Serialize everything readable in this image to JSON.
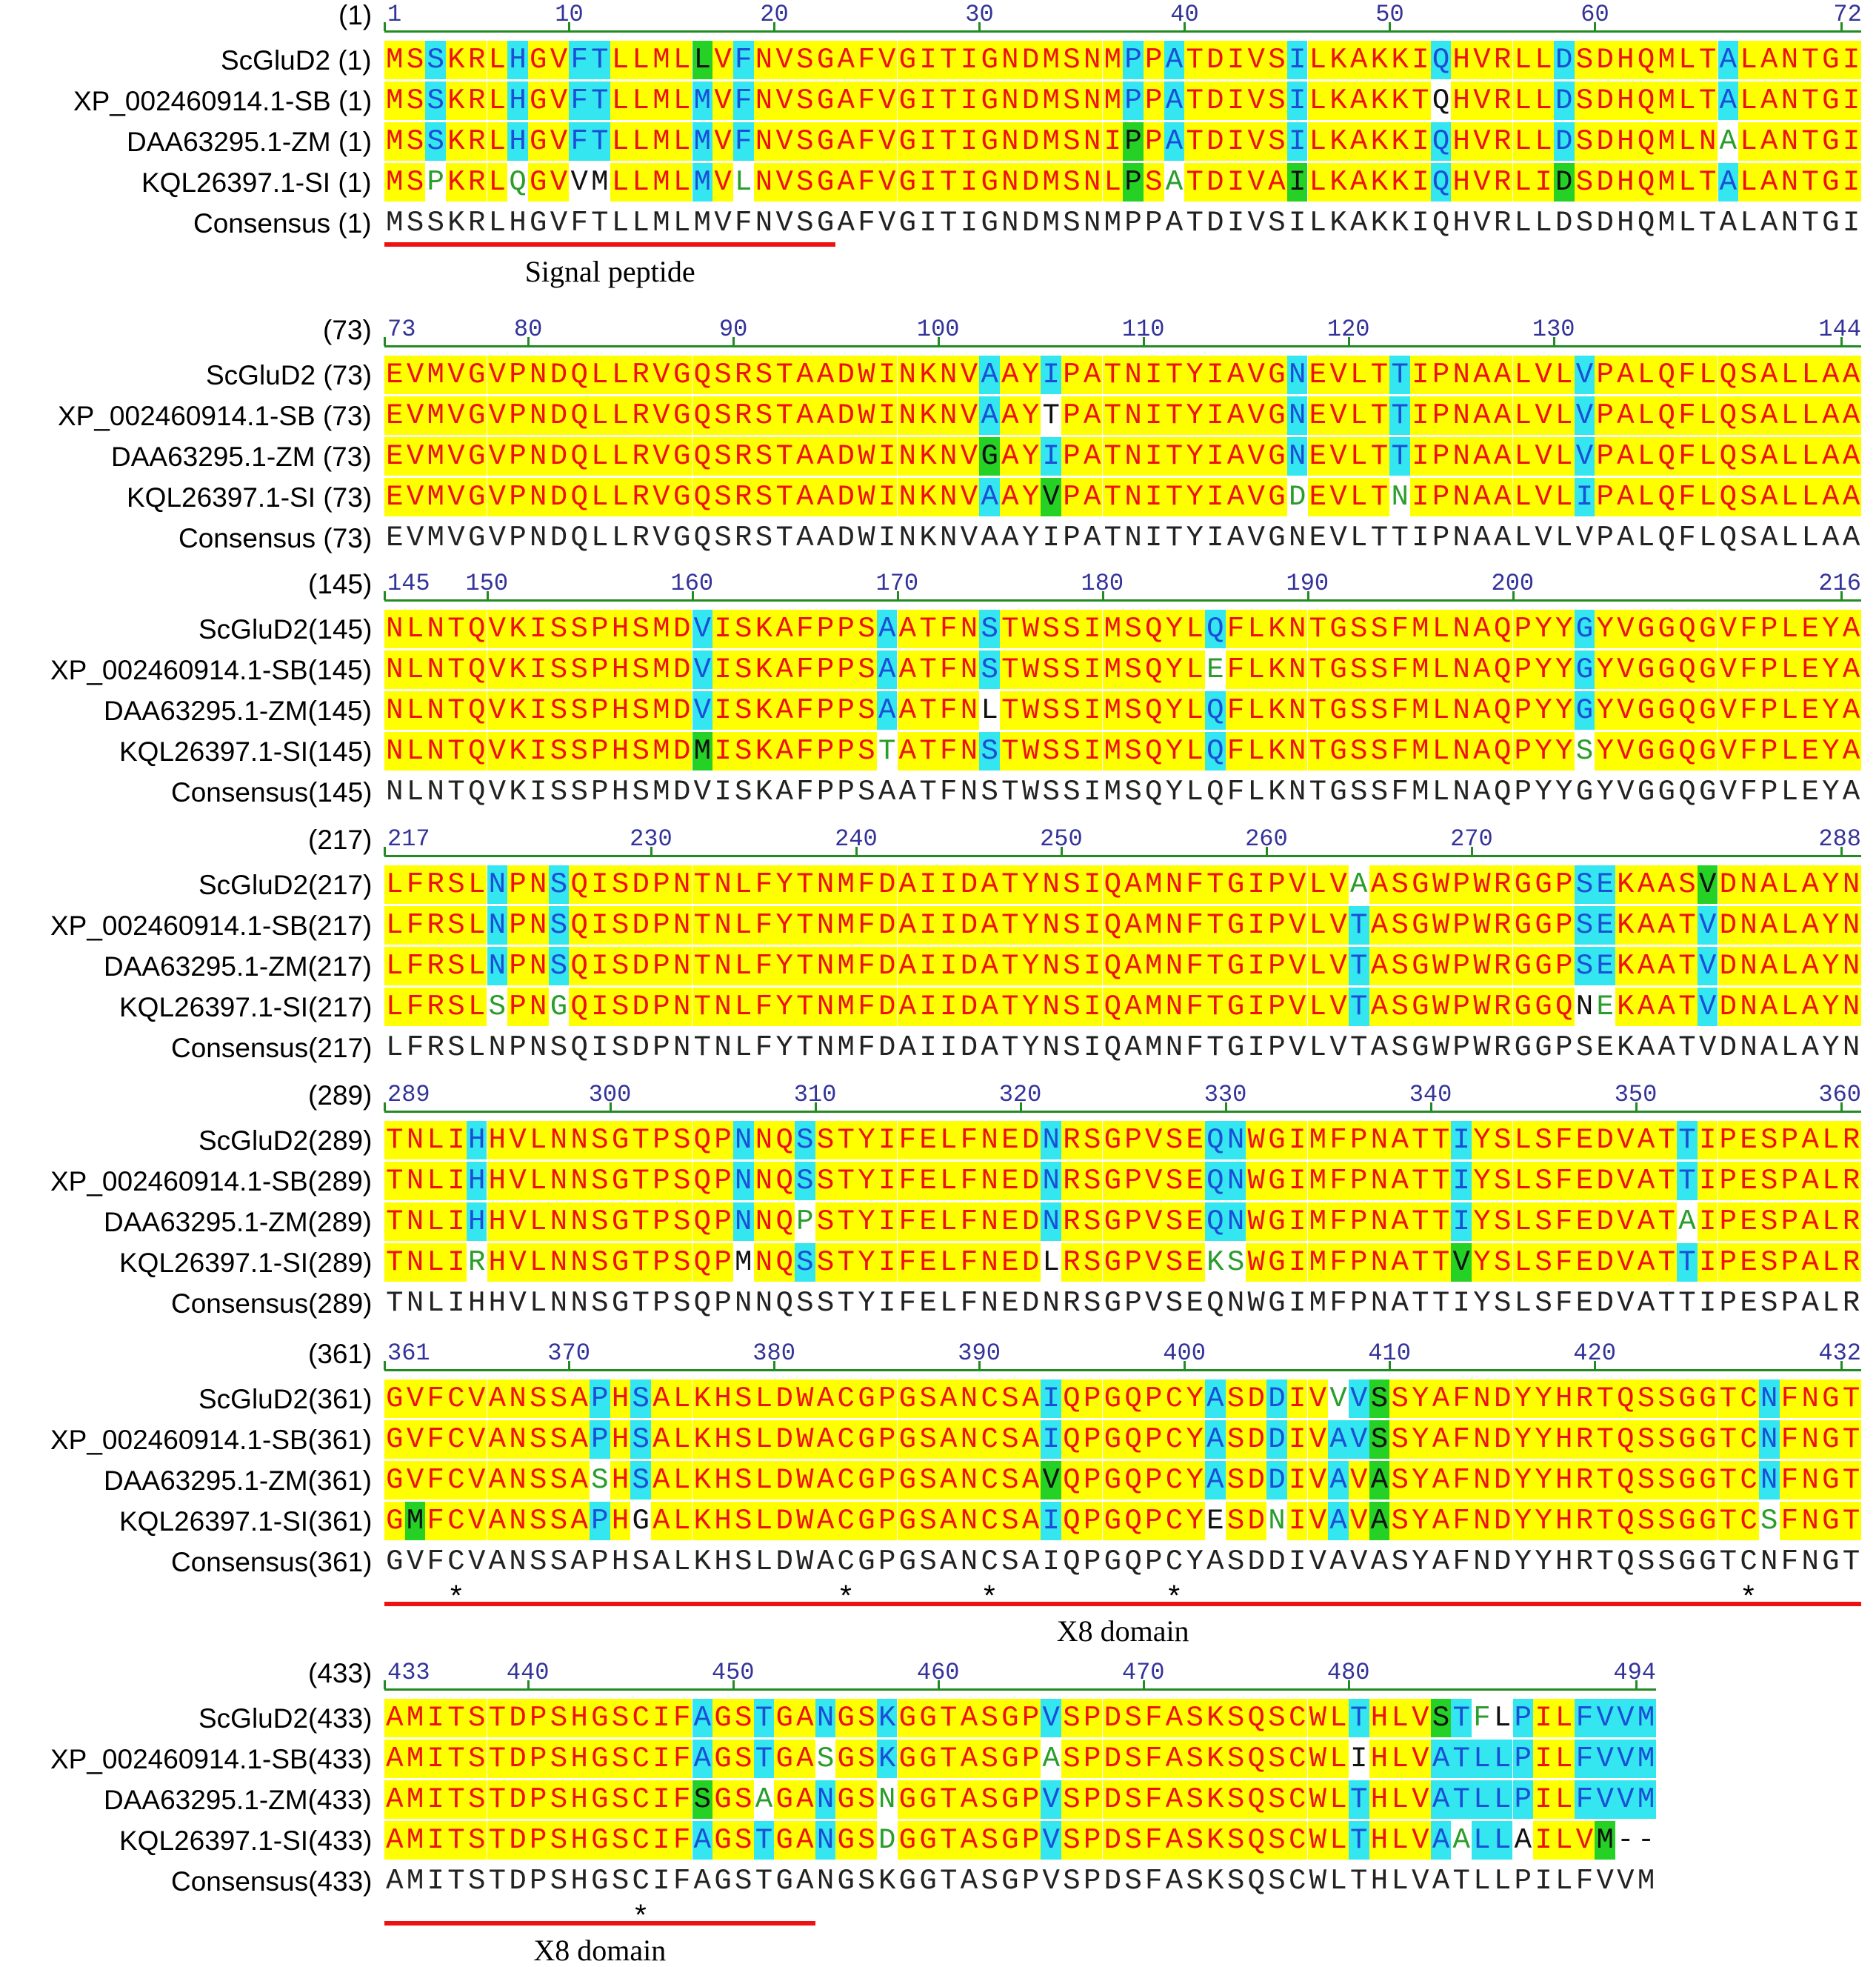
{
  "figure": {
    "legend": {
      "identical_highlight_color": "#ffff00",
      "similar_highlight_color": "#33e6f0",
      "conserved_block_color": "#26d126",
      "identical_text_color": "#ee1111",
      "similar_text_color": "#1a4fd6",
      "block_text_color": "#111111",
      "weak_text_color": "#2a9d2a",
      "tick_color": "#333399",
      "ruler_line_color": "#228b22",
      "feature_bar_color": "#ee1111"
    },
    "blocks": [
      {
        "start_label": "(1)",
        "ticks": [
          {
            "pos": 1,
            "label": "1"
          },
          {
            "pos": 10,
            "label": "10"
          },
          {
            "pos": 20,
            "label": "20"
          },
          {
            "pos": 30,
            "label": "30"
          },
          {
            "pos": 40,
            "label": "40"
          },
          {
            "pos": 50,
            "label": "50"
          },
          {
            "pos": 60,
            "label": "60"
          },
          {
            "pos": 72,
            "label": "72"
          }
        ],
        "rows": [
          {
            "label": "ScGluD2 (1)",
            "seq": "MSSKRLHGVFTLLMLLVFNVSGAFVGITIGNDMSNMPPATDIVSILKAKKIQHVRLLDSDHQMLTALANTGI",
            "cls": "YYCYYYCYYCCYYYYGYCYYYYYYYYYYYYYYYYYYCYCYYYYYCYYYYYYCYYYYYCYYYYYYYCYYYYYY"
          },
          {
            "label": "XP_002460914.1-SB (1)",
            "seq": "MSSKRLHGVFTLLMLMVFNVSGAFVGITIGNDMSNMPPATDIVSILKAKKTQHVRLLDSDHQMLTALANTGI",
            "cls": "YYCYYYCYYCCYYYYCYCYYYYYYYYYYYYYYYYYYCYCYYYYYCYYYYYYWYYYYYCYYYYYYYCYYYYYY"
          },
          {
            "label": "DAA63295.1-ZM (1)",
            "seq": "MSSKRLHGVFTLLMLMVFNVSGAFVGITIGNDMSNIPPATDIVSILKAKKIQHVRLLDSDHQMLNALANTGI",
            "cls": "YYCYYYCYYCCYYYYCYCYYYYYYYYYYYYYYYYYYGYCYYYYYCYYYYYYCYYYYYCYYYYYYYNYYYYYY"
          },
          {
            "label": "KQL26397.1-SI (1)",
            "seq": "MSPKRLQGVVMLLMLMVLNVSGAFVGITIGNDMSNLPSATDIVAILKAKKIQHVRLIDSDHQMLTALANTGI",
            "cls": "YYNYYYNYYWWYYYYCYNYYYYYYYYYYYYYYYYYYGYNYYYYYGYYYYYYCYYYYYGYYYYYYYCYYYYYY"
          },
          {
            "label": "Consensus (1)",
            "seq": "MSSKRLHGVFTLLMLMVFNVSGAFVGITIGNDMSNMPPATDIVSILKAKKIQHVRLLDSDHQMLTALANTGI",
            "cls": "KKKKKKKKKKKKKKKKKKKKKKKKKKKKKKKKKKKKKKKKKKKKKKKKKKKKKKKKKKKKKKKKKKKKKKKK"
          }
        ],
        "features": [
          {
            "label": "Signal peptide",
            "start": 1,
            "end": 22
          }
        ],
        "stars": []
      },
      {
        "start_label": "(73)",
        "ticks": [
          {
            "pos": 73,
            "label": "73"
          },
          {
            "pos": 80,
            "label": "80"
          },
          {
            "pos": 90,
            "label": "90"
          },
          {
            "pos": 100,
            "label": "100"
          },
          {
            "pos": 110,
            "label": "110"
          },
          {
            "pos": 120,
            "label": "120"
          },
          {
            "pos": 130,
            "label": "130"
          },
          {
            "pos": 144,
            "label": "144"
          }
        ],
        "rows": [
          {
            "label": "ScGluD2 (73)",
            "seq": "EVMVGVPNDQLLRVGQSRSTAADWINKNVAAYIPATNITYIAVGNEVLTTIPNAALVLVPALQFLQSALLAA",
            "cls": "YYYYYYYYYYYYYYYYYYYYYYYYYYYYYCYYCYYYYYYYYYYYCYYYYCYYYYYYYYCYYYYYYYYYYYYY"
          },
          {
            "label": "XP_002460914.1-SB (73)",
            "seq": "EVMVGVPNDQLLRVGQSRSTAADWINKNVAAYTPATNITYIAVGNEVLTTIPNAALVLVPALQFLQSALLAA",
            "cls": "YYYYYYYYYYYYYYYYYYYYYYYYYYYYYCYYWYYYYYYYYYYYCYYYYCYYYYYYYYCYYYYYYYYYYYYY"
          },
          {
            "label": "DAA63295.1-ZM (73)",
            "seq": "EVMVGVPNDQLLRVGQSRSTAADWINKNVGAYIPATNITYIAVGNEVLTTIPNAALVLVPALQFLQSALLAA",
            "cls": "YYYYYYYYYYYYYYYYYYYYYYYYYYYYYGYYCYYYYYYYYYYYCYYYYCYYYYYYYYCYYYYYYYYYYYYY"
          },
          {
            "label": "KQL26397.1-SI (73)",
            "seq": "EVMVGVPNDQLLRVGQSRSTAADWINKNVAAYVPATNITYIAVGDEVLTNIPNAALVLIPALQFLQSALLAA",
            "cls": "YYYYYYYYYYYYYYYYYYYYYYYYYYYYYCYYGYYYYYYYYYYYNYYYYNYYYYYYYYCYYYYYYYYYYYYY"
          },
          {
            "label": "Consensus (73)",
            "seq": "EVMVGVPNDQLLRVGQSRSTAADWINKNVAAYIPATNITYIAVGNEVLTTIPNAALVLVPALQFLQSALLAA",
            "cls": "KKKKKKKKKKKKKKKKKKKKKKKKKKKKKKKKKKKKKKKKKKKKKKKKKKKKKKKKKKKKKKKKKKKKKKKK"
          }
        ],
        "features": [],
        "stars": []
      },
      {
        "start_label": "(145)",
        "ticks": [
          {
            "pos": 145,
            "label": "145"
          },
          {
            "pos": 150,
            "label": "150"
          },
          {
            "pos": 160,
            "label": "160"
          },
          {
            "pos": 170,
            "label": "170"
          },
          {
            "pos": 180,
            "label": "180"
          },
          {
            "pos": 190,
            "label": "190"
          },
          {
            "pos": 200,
            "label": "200"
          },
          {
            "pos": 216,
            "label": "216"
          }
        ],
        "rows": [
          {
            "label": "ScGluD2(145)",
            "seq": "NLNTQVKISSPHSMDVISKAFPPSAATFNSTWSSIMSQYLQFLKNTGSSFMLNAQPYYGYVGGQGVFPLEYA",
            "cls": "YYYYYYYYYYYYYYYCYYYYYYYYCYYYYCYYYYYYYYYYCYYYYYYYYYYYYYYYYYCYYYYYYYYYYYYY"
          },
          {
            "label": "XP_002460914.1-SB(145)",
            "seq": "NLNTQVKISSPHSMDVISKAFPPSAATFNSTWSSIMSQYLEFLKNTGSSFMLNAQPYYGYVGGQGVFPLEYA",
            "cls": "YYYYYYYYYYYYYYYCYYYYYYYYCYYYYCYYYYYYYYYYNYYYYYYYYYYYYYYYYYCYYYYYYYYYYYYY"
          },
          {
            "label": "DAA63295.1-ZM(145)",
            "seq": "NLNTQVKISSPHSMDVISKAFPPSAATFNLTWSSIMSQYLQFLKNTGSSFMLNAQPYYGYVGGQGVFPLEYA",
            "cls": "YYYYYYYYYYYYYYYCYYYYYYYYCYYYYWYYYYYYYYYYCYYYYYYYYYYYYYYYYYCYYYYYYYYYYYYY"
          },
          {
            "label": "KQL26397.1-SI(145)",
            "seq": "NLNTQVKISSPHSMDMISKAFPPSTATFNSTWSSIMSQYLQFLKNTGSSFMLNAQPYYSYVGGQGVFPLEYA",
            "cls": "YYYYYYYYYYYYYYYGYYYYYYYYNYYYYCYYYYYYYYYYCYYYYYYYYYYYYYYYYYNYYYYYYYYYYYYY"
          },
          {
            "label": "Consensus(145)",
            "seq": "NLNTQVKISSPHSMDVISKAFPPSAATFNSTWSSIMSQYLQFLKNTGSSFMLNAQPYYGYVGGQGVFPLEYA",
            "cls": "KKKKKKKKKKKKKKKKKKKKKKKKKKKKKKKKKKKKKKKKKKKKKKKKKKKKKKKKKKKKKKKKKKKKKKKK"
          }
        ],
        "features": [],
        "stars": []
      },
      {
        "start_label": "(217)",
        "ticks": [
          {
            "pos": 217,
            "label": "217"
          },
          {
            "pos": 230,
            "label": "230"
          },
          {
            "pos": 240,
            "label": "240"
          },
          {
            "pos": 250,
            "label": "250"
          },
          {
            "pos": 260,
            "label": "260"
          },
          {
            "pos": 270,
            "label": "270"
          },
          {
            "pos": 288,
            "label": "288"
          }
        ],
        "rows": [
          {
            "label": "ScGluD2(217)",
            "seq": "LFRSLNPNSQISDPNTNLFYTNMFDAIIDATYNSIQAMNFTGIPVLVAASGWPWRGGPSEKAASVDNALAYN",
            "cls": "YYYYYCYYCYYYYYYYYYYYYYYYYYYYYYYYYYYYYYYYYYYYYYYNYYYYYYYYYYCCYYYYGYYYYYYY"
          },
          {
            "label": "XP_002460914.1-SB(217)",
            "seq": "LFRSLNPNSQISDPNTNLFYTNMFDAIIDATYNSIQAMNFTGIPVLVTASGWPWRGGPSEKAATVDNALAYN",
            "cls": "YYYYYCYYCYYYYYYYYYYYYYYYYYYYYYYYYYYYYYYYYYYYYYYCYYYYYYYYYYCCYYYYCYYYYYYY"
          },
          {
            "label": "DAA63295.1-ZM(217)",
            "seq": "LFRSLNPNSQISDPNTNLFYTNMFDAIIDATYNSIQAMNFTGIPVLVTASGWPWRGGPSEKAATVDNALAYN",
            "cls": "YYYYYCYYCYYYYYYYYYYYYYYYYYYYYYYYYYYYYYYYYYYYYYYCYYYYYYYYYYCCYYYYCYYYYYYY"
          },
          {
            "label": "KQL26397.1-SI(217)",
            "seq": "LFRSLSPNGQISDPNTNLFYTNMFDAIIDATYNSIQAMNFTGIPVLVTASGWPWRGGQNEKAATVDNALAYN",
            "cls": "YYYYYNYYNYYYYYYYYYYYYYYYYYYYYYYYYYYYYYYYYYYYYYYCYYYYYYYYYYWNYYYYCYYYYYYY"
          },
          {
            "label": "Consensus(217)",
            "seq": "LFRSLNPNSQISDPNTNLFYTNMFDAIIDATYNSIQAMNFTGIPVLVTASGWPWRGGPSEKAATVDNALAYN",
            "cls": "KKKKKKKKKKKKKKKKKKKKKKKKKKKKKKKKKKKKKKKKKKKKKKKKKKKKKKKKKKKKKKKKKKKKKKKK"
          }
        ],
        "features": [],
        "stars": []
      },
      {
        "start_label": "(289)",
        "ticks": [
          {
            "pos": 289,
            "label": "289"
          },
          {
            "pos": 300,
            "label": "300"
          },
          {
            "pos": 310,
            "label": "310"
          },
          {
            "pos": 320,
            "label": "320"
          },
          {
            "pos": 330,
            "label": "330"
          },
          {
            "pos": 340,
            "label": "340"
          },
          {
            "pos": 350,
            "label": "350"
          },
          {
            "pos": 360,
            "label": "360"
          }
        ],
        "rows": [
          {
            "label": "ScGluD2(289)",
            "seq": "TNLIHHVLNNSGTPSQPNNQSSTYIFELFNEDNRSGPVSEQNWGIMFPNATTIYSLSFEDVATTIPESPALR",
            "cls": "YYYYCYYYYYYYYYYYYCYYCYYYYYYYYYYYCYYYYYYYCCYYYYYYYYYYCYYYYYYYYYYCYYYYYYYY"
          },
          {
            "label": "XP_002460914.1-SB(289)",
            "seq": "TNLIHHVLNNSGTPSQPNNQSSTYIFELFNEDNRSGPVSEQNWGIMFPNATTIYSLSFEDVATTIPESPALR",
            "cls": "YYYYCYYYYYYYYYYYYCYYCYYYYYYYYYYYCYYYYYYYCCYYYYYYYYYYCYYYYYYYYYYCYYYYYYYY"
          },
          {
            "label": "DAA63295.1-ZM(289)",
            "seq": "TNLIHHVLNNSGTPSQPNNQPSTYIFELFNEDNRSGPVSEQNWGIMFPNATTIYSLSFEDVATAIPESPALR",
            "cls": "YYYYCYYYYYYYYYYYYCYYNYYYYYYYYYYYCYYYYYYYCCYYYYYYYYYYCYYYYYYYYYYNYYYYYYYY"
          },
          {
            "label": "KQL26397.1-SI(289)",
            "seq": "TNLIRHVLNNSGTPSQPMNQSSTYIFELFNEDLRSGPVSEKSWGIMFPNATTVYSLSFEDVATTIPESPALR",
            "cls": "YYYYNYYYYYYYYYYYYWYYCYYYYYYYYYYYWYYYYYYYNNYYYYYYYYYYGYYYYYYYYYYCYYYYYYYY"
          },
          {
            "label": "Consensus(289)",
            "seq": "TNLIHHVLNNSGTPSQPNNQSSTYIFELFNEDNRSGPVSEQNWGIMFPNATTIYSLSFEDVATTIPESPALR",
            "cls": "KKKKKKKKKKKKKKKKKKKKKKKKKKKKKKKKKKKKKKKKKKKKKKKKKKKKKKKKKKKKKKKKKKKKKKKK"
          }
        ],
        "features": [],
        "stars": []
      },
      {
        "start_label": "(361)",
        "ticks": [
          {
            "pos": 361,
            "label": "361"
          },
          {
            "pos": 370,
            "label": "370"
          },
          {
            "pos": 380,
            "label": "380"
          },
          {
            "pos": 390,
            "label": "390"
          },
          {
            "pos": 400,
            "label": "400"
          },
          {
            "pos": 410,
            "label": "410"
          },
          {
            "pos": 420,
            "label": "420"
          },
          {
            "pos": 432,
            "label": "432"
          }
        ],
        "rows": [
          {
            "label": "ScGluD2(361)",
            "seq": "GVFCVANSSAPHSALKHSLDWACGPGSANCSAIQPGQPCYASDDIVVVSSYAFNDYYHRTQSSGGTCNFNGT",
            "cls": "YYYYYYYYYYCYCYYYYYYYYYYYYYYYYYYYCYYYYYYYCYYCYYNCGYYYYYYYYYYYYYYYYYYCYYYY"
          },
          {
            "label": "XP_002460914.1-SB(361)",
            "seq": "GVFCVANSSAPHSALKHSLDWACGPGSANCSAIQPGQPCYASDDIVAVSSYAFNDYYHRTQSSGGTCNFNGT",
            "cls": "YYYYYYYYYYCYCYYYYYYYYYYYYYYYYYYYCYYYYYYYCYYCYYCCGYYYYYYYYYYYYYYYYYYCYYYY"
          },
          {
            "label": "DAA63295.1-ZM(361)",
            "seq": "GVFCVANSSASHSALKHSLDWACGPGSANCSAVQPGQPCYASDDIVAVASYAFNDYYHRTQSSGGTCNFNGT",
            "cls": "YYYYYYYYYYNYCYYYYYYYYYYYYYYYYYYYGYYYYYYYCYYCYYCYGYYYYYYYYYYYYYYYYYYCYYYY"
          },
          {
            "label": "KQL26397.1-SI(361)",
            "seq": "GMFCVANSSAPHGALKHSLDWACGPGSANCSAIQPGQPCYESDNIVAVASYAFNDYYHRTQSSGGTCSFNGT",
            "cls": "YGYYYYYYYYCYWYYYYYYYYYYYYYYYYYYYCYYYYYYYWYYNYYCYGYYYYYYYYYYYYYYYYYYNYYYY"
          },
          {
            "label": "Consensus(361)",
            "seq": "GVFCVANSSAPHSALKHSLDWACGPGSANCSAIQPGQPCYASDDIVAVASYAFNDYYHRTQSSGGTCNFNGT",
            "cls": "KKKKKKKKKKKKKKKKKKKKKKKKKKKKKKKKKKKKKKKKKKKKKKKKKKKKKKKKKKKKKKKKKKKKKKKK"
          }
        ],
        "features": [
          {
            "label": "X8 domain",
            "start": 361,
            "end": 432
          }
        ],
        "stars": [
          364,
          383,
          390,
          399,
          427
        ]
      },
      {
        "start_label": "(433)",
        "ticks": [
          {
            "pos": 433,
            "label": "433"
          },
          {
            "pos": 440,
            "label": "440"
          },
          {
            "pos": 450,
            "label": "450"
          },
          {
            "pos": 460,
            "label": "460"
          },
          {
            "pos": 470,
            "label": "470"
          },
          {
            "pos": 480,
            "label": "480"
          },
          {
            "pos": 494,
            "label": "494"
          }
        ],
        "rows": [
          {
            "label": "ScGluD2(433)",
            "seq": "AMITSTDPSHGSCIFAGSTGANGSKGGTASGPVSPDSFASKSQSCWLTHLVSTFLPILFVVM",
            "cls": "YYYYYYYYYYYYYYYCYYCYYCYYCYYYYYYYCYYYYYYYYYYYYYYCYYYGCNWCYYCCCC"
          },
          {
            "label": "XP_002460914.1-SB(433)",
            "seq": "AMITSTDPSHGSCIFAGSTGASGSKGGTASGPASPDSFASKSQSCWLIHLVATLLPILFVVM",
            "cls": "YYYYYYYYYYYYYYYCYYCYYNYYCYYYYYYYNYYYYYYYYYYYYYYWYYYCCCCCYYCCCC"
          },
          {
            "label": "DAA63295.1-ZM(433)",
            "seq": "AMITSTDPSHGSCIFSGSAGANGSNGGTASGPVSPDSFASKSQSCWLTHLVATLLPILFVVM",
            "cls": "YYYYYYYYYYYYYYYGYYNYYCYYNYYYYYYYCYYYYYYYYYYYYYYCYYYCCCCCYYCCCC"
          },
          {
            "label": "KQL26397.1-SI(433)",
            "seq": "AMITSTDPSHGSCIFAGSTGANGSDGGTASGPVSPDSFASKSQSCWLTHLVAALLAILVM--",
            "cls": "YYYYYYYYYYYYYYYCYYCYYCYYNYYYYYYYCYYYYYYYYYYYYYYCYYYCNCCWYYYGWW"
          },
          {
            "label": "Consensus(433)",
            "seq": "AMITSTDPSHGSCIFAGSTGANGSKGGTASGPVSPDSFASKSQSCWLTHLVATLLPILFVVM",
            "cls": "KKKKKKKKKKKKKKKKKKKKKKKKKKKKKKKKKKKKKKKKKKKKKKKKKKKKKKKKKKKKKK"
          }
        ],
        "features": [
          {
            "label": "X8 domain",
            "start": 433,
            "end": 453
          }
        ],
        "stars": [
          445
        ]
      }
    ]
  }
}
